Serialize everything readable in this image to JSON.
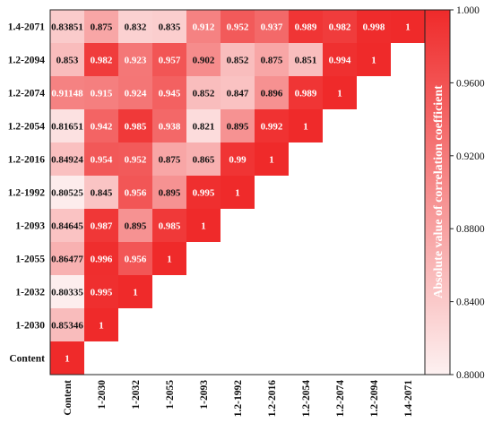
{
  "chart_data": {
    "type": "heatmap",
    "colorbar_title": "Absolute value of correlation coefficient",
    "colorbar_range": [
      0.8,
      1.0
    ],
    "colorbar_ticks": [
      "0.8000",
      "0.8400",
      "0.8800",
      "0.9200",
      "0.9600",
      "1.000"
    ],
    "color_low": "#fdf1f1",
    "color_high": "#ef2a2a",
    "rows": [
      "1.4-2071",
      "1.2-2094",
      "1.2-2074",
      "1.2-2054",
      "1.2-2016",
      "1.2-1992",
      "1-2093",
      "1-2055",
      "1-2032",
      "1-2030",
      "Content"
    ],
    "columns": [
      "Content",
      "1-2030",
      "1-2032",
      "1-2055",
      "1-2093",
      "1.2-1992",
      "1.2-2016",
      "1.2-2054",
      "1.2-2074",
      "1.2-2094",
      "1.4-2071"
    ],
    "labels": [
      [
        "0.83851",
        "0.875",
        "0.832",
        "0.835",
        "0.912",
        "0.952",
        "0.937",
        "0.989",
        "0.982",
        "0.998",
        "1"
      ],
      [
        "0.853",
        "0.982",
        "0.923",
        "0.957",
        "0.902",
        "0.852",
        "0.875",
        "0.851",
        "0.994",
        "1"
      ],
      [
        "0.91148",
        "0.915",
        "0.924",
        "0.945",
        "0.852",
        "0.847",
        "0.896",
        "0.989",
        "1"
      ],
      [
        "0.81651",
        "0.942",
        "0.985",
        "0.938",
        "0.821",
        "0.895",
        "0.992",
        "1"
      ],
      [
        "0.84924",
        "0.954",
        "0.952",
        "0.875",
        "0.865",
        "0.99",
        "1"
      ],
      [
        "0.80525",
        "0.845",
        "0.956",
        "0.895",
        "0.995",
        "1"
      ],
      [
        "0.84645",
        "0.987",
        "0.895",
        "0.985",
        "1"
      ],
      [
        "0.86477",
        "0.996",
        "0.956",
        "1"
      ],
      [
        "0.80335",
        "0.995",
        "1"
      ],
      [
        "0.85346",
        "1"
      ],
      [
        "1"
      ]
    ]
  }
}
